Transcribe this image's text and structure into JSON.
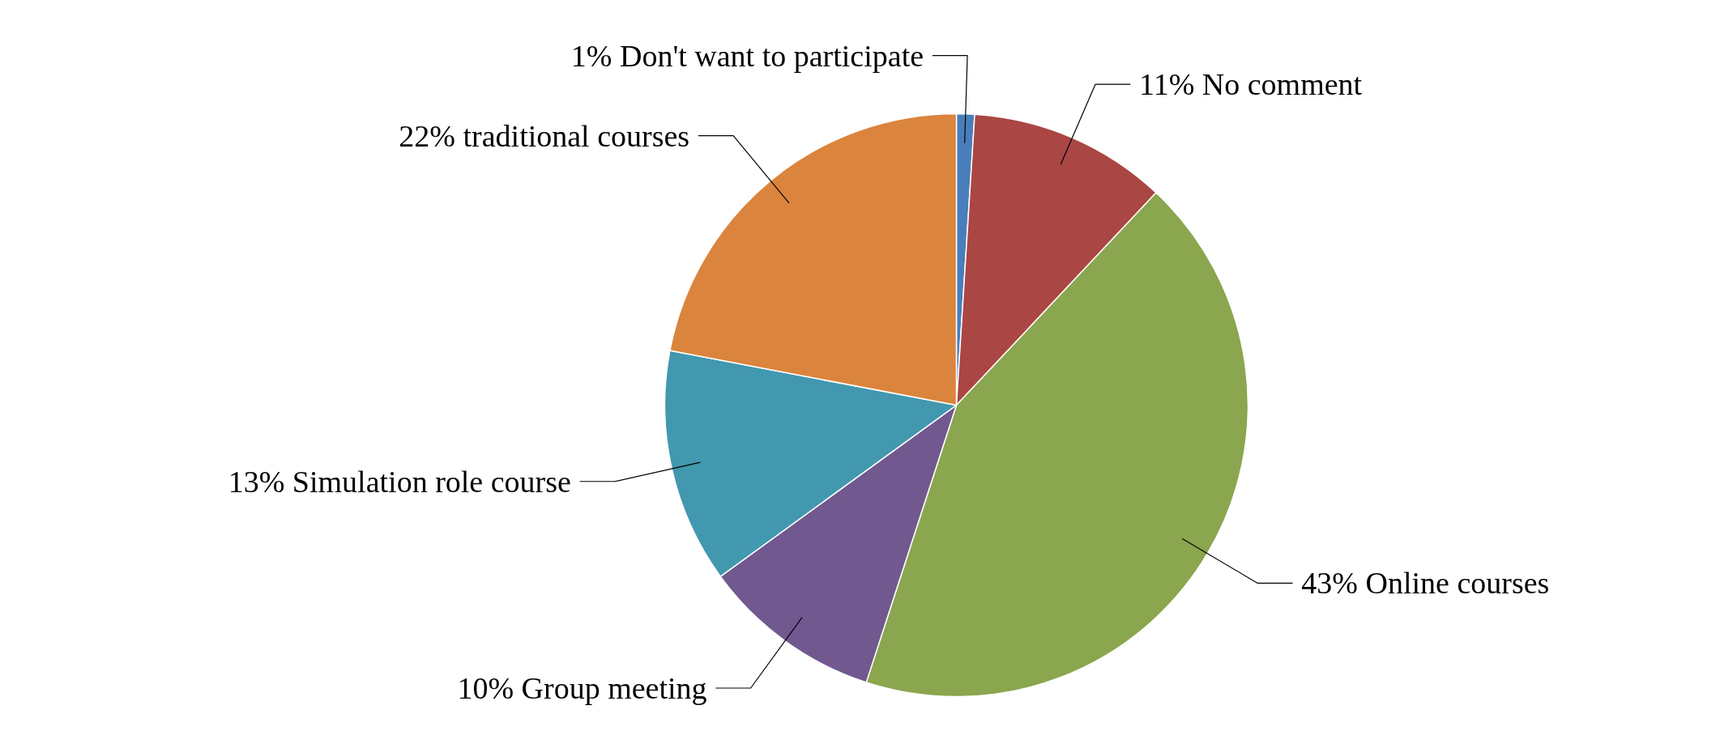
{
  "chart_data": {
    "type": "pie",
    "categories": [
      "Don't want to participate",
      "No comment",
      "Online courses",
      "Group meeting",
      "Simulation role course",
      "traditional courses"
    ],
    "values": [
      1,
      11,
      43,
      10,
      13,
      22
    ],
    "value_labels": [
      "1%",
      "11%",
      "43%",
      "10%",
      "13%",
      "22%"
    ],
    "colors": [
      "#4a7ebb",
      "#aa4644",
      "#8aa64e",
      "#71588f",
      "#4298af",
      "#db843d"
    ],
    "legend": false
  }
}
